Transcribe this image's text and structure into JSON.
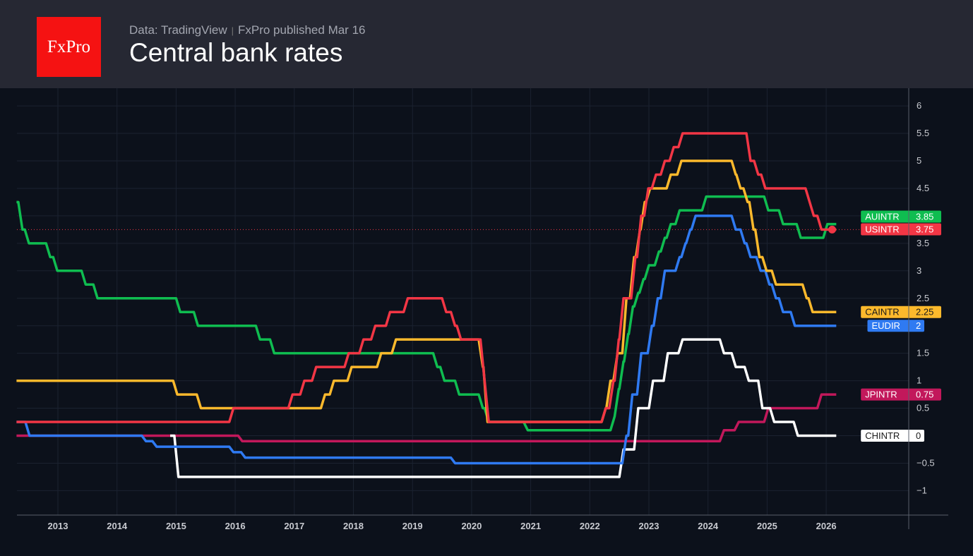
{
  "header": {
    "logo": "FxPro",
    "source": "Data: TradingView",
    "published": "FxPro published Mar 16",
    "title": "Central bank rates"
  },
  "chart_data": {
    "type": "line",
    "title": "Central bank rates",
    "step": true,
    "xlim": [
      2012.3,
      2026.8
    ],
    "ylim": [
      -1.4,
      6.3
    ],
    "x_ticks": [
      "2013",
      "2014",
      "2015",
      "2016",
      "2017",
      "2018",
      "2019",
      "2020",
      "2021",
      "2022",
      "2023",
      "2024",
      "2025",
      "2026"
    ],
    "y_ticks": [
      6,
      5.5,
      5,
      4.5,
      4,
      3.5,
      3,
      2.5,
      2,
      1.5,
      1,
      0.5,
      0,
      -0.5,
      -1
    ],
    "y_tick_labels": [
      "6",
      "5.5",
      "5",
      "4.5",
      "",
      "3.5",
      "3",
      "2.5",
      "",
      "1.5",
      "1",
      "0.5",
      "",
      "−0.5",
      "−1"
    ],
    "grid": true,
    "series": [
      {
        "name": "AUINTR",
        "last": "3.85",
        "color": "#0fbd50",
        "points": [
          [
            2012.3,
            4.25
          ],
          [
            2012.33,
            3.75
          ],
          [
            2012.44,
            3.5
          ],
          [
            2012.8,
            3.25
          ],
          [
            2012.92,
            3.0
          ],
          [
            2013.4,
            2.75
          ],
          [
            2013.6,
            2.5
          ],
          [
            2015.0,
            2.25
          ],
          [
            2015.3,
            2.0
          ],
          [
            2016.35,
            1.75
          ],
          [
            2016.59,
            1.5
          ],
          [
            2019.35,
            1.25
          ],
          [
            2019.47,
            1.0
          ],
          [
            2019.72,
            0.75
          ],
          [
            2020.12,
            0.5
          ],
          [
            2020.22,
            0.25
          ],
          [
            2020.88,
            0.1
          ],
          [
            2022.35,
            0.35
          ],
          [
            2022.42,
            0.85
          ],
          [
            2022.5,
            1.35
          ],
          [
            2022.58,
            1.85
          ],
          [
            2022.66,
            2.35
          ],
          [
            2022.75,
            2.6
          ],
          [
            2022.84,
            2.85
          ],
          [
            2022.93,
            3.1
          ],
          [
            2023.1,
            3.35
          ],
          [
            2023.2,
            3.6
          ],
          [
            2023.3,
            3.85
          ],
          [
            2023.45,
            4.1
          ],
          [
            2023.9,
            4.35
          ],
          [
            2024.95,
            4.1
          ],
          [
            2025.2,
            3.85
          ],
          [
            2025.5,
            3.6
          ],
          [
            2025.95,
            3.85
          ],
          [
            2026.1,
            3.85
          ]
        ]
      },
      {
        "name": "USINTR",
        "last": "3.75",
        "color": "#f23645",
        "points": [
          [
            2012.3,
            0.25
          ],
          [
            2015.9,
            0.5
          ],
          [
            2016.9,
            0.75
          ],
          [
            2017.1,
            1.0
          ],
          [
            2017.3,
            1.25
          ],
          [
            2017.85,
            1.5
          ],
          [
            2018.1,
            1.75
          ],
          [
            2018.3,
            2.0
          ],
          [
            2018.55,
            2.25
          ],
          [
            2018.85,
            2.5
          ],
          [
            2019.5,
            2.25
          ],
          [
            2019.65,
            2.0
          ],
          [
            2019.75,
            1.75
          ],
          [
            2020.15,
            1.0
          ],
          [
            2020.22,
            0.25
          ],
          [
            2022.2,
            0.5
          ],
          [
            2022.33,
            1.0
          ],
          [
            2022.42,
            1.75
          ],
          [
            2022.5,
            2.5
          ],
          [
            2022.7,
            3.25
          ],
          [
            2022.8,
            4.0
          ],
          [
            2022.92,
            4.5
          ],
          [
            2023.05,
            4.75
          ],
          [
            2023.2,
            5.0
          ],
          [
            2023.35,
            5.25
          ],
          [
            2023.5,
            5.5
          ],
          [
            2024.65,
            5.0
          ],
          [
            2024.78,
            4.75
          ],
          [
            2024.9,
            4.5
          ],
          [
            2025.65,
            4.25
          ],
          [
            2025.72,
            4.0
          ],
          [
            2025.85,
            3.75
          ],
          [
            2026.1,
            3.75
          ]
        ]
      },
      {
        "name": "CAINTR",
        "last": "2.25",
        "color": "#fcb92c",
        "points": [
          [
            2012.3,
            1.0
          ],
          [
            2014.95,
            0.75
          ],
          [
            2015.35,
            0.5
          ],
          [
            2017.45,
            0.75
          ],
          [
            2017.6,
            1.0
          ],
          [
            2017.9,
            1.25
          ],
          [
            2018.4,
            1.5
          ],
          [
            2018.65,
            1.75
          ],
          [
            2020.12,
            1.25
          ],
          [
            2020.2,
            0.25
          ],
          [
            2022.2,
            0.5
          ],
          [
            2022.28,
            1.0
          ],
          [
            2022.4,
            1.5
          ],
          [
            2022.55,
            2.5
          ],
          [
            2022.68,
            3.25
          ],
          [
            2022.78,
            3.75
          ],
          [
            2022.86,
            4.25
          ],
          [
            2022.95,
            4.5
          ],
          [
            2023.3,
            4.75
          ],
          [
            2023.48,
            5.0
          ],
          [
            2024.4,
            4.75
          ],
          [
            2024.48,
            4.5
          ],
          [
            2024.6,
            4.25
          ],
          [
            2024.7,
            3.75
          ],
          [
            2024.8,
            3.25
          ],
          [
            2024.92,
            3.0
          ],
          [
            2025.08,
            2.75
          ],
          [
            2025.6,
            2.5
          ],
          [
            2025.7,
            2.25
          ],
          [
            2026.1,
            2.25
          ]
        ]
      },
      {
        "name": "EUDIR",
        "last": "2",
        "color": "#2f7af2",
        "points": [
          [
            2012.3,
            0.25
          ],
          [
            2012.45,
            0.0
          ],
          [
            2014.42,
            -0.1
          ],
          [
            2014.6,
            -0.2
          ],
          [
            2015.9,
            -0.3
          ],
          [
            2016.1,
            -0.4
          ],
          [
            2019.65,
            -0.5
          ],
          [
            2022.55,
            0.0
          ],
          [
            2022.65,
            0.75
          ],
          [
            2022.8,
            1.5
          ],
          [
            2022.98,
            2.0
          ],
          [
            2023.08,
            2.5
          ],
          [
            2023.2,
            3.0
          ],
          [
            2023.45,
            3.25
          ],
          [
            2023.55,
            3.5
          ],
          [
            2023.63,
            3.75
          ],
          [
            2023.72,
            4.0
          ],
          [
            2024.4,
            3.75
          ],
          [
            2024.55,
            3.5
          ],
          [
            2024.65,
            3.25
          ],
          [
            2024.82,
            3.0
          ],
          [
            2024.97,
            2.75
          ],
          [
            2025.08,
            2.5
          ],
          [
            2025.2,
            2.25
          ],
          [
            2025.4,
            2.0
          ],
          [
            2026.1,
            2.0
          ]
        ]
      },
      {
        "name": "JPINTR",
        "last": "0.75",
        "color": "#c2185b",
        "points": [
          [
            2012.3,
            0.0
          ],
          [
            2016.05,
            -0.1
          ],
          [
            2024.2,
            0.1
          ],
          [
            2024.45,
            0.25
          ],
          [
            2024.95,
            0.5
          ],
          [
            2025.85,
            0.75
          ],
          [
            2026.1,
            0.75
          ]
        ]
      },
      {
        "name": "CHINTR",
        "last": "0",
        "color": "#ffffff",
        "points": [
          [
            2014.9,
            0.0
          ],
          [
            2014.97,
            -0.75
          ],
          [
            2022.5,
            -0.25
          ],
          [
            2022.75,
            0.5
          ],
          [
            2023.0,
            1.0
          ],
          [
            2023.25,
            1.5
          ],
          [
            2023.5,
            1.75
          ],
          [
            2024.2,
            1.5
          ],
          [
            2024.4,
            1.25
          ],
          [
            2024.62,
            1.0
          ],
          [
            2024.85,
            0.5
          ],
          [
            2025.05,
            0.25
          ],
          [
            2025.45,
            0.0
          ],
          [
            2026.1,
            0.0
          ]
        ]
      }
    ]
  }
}
